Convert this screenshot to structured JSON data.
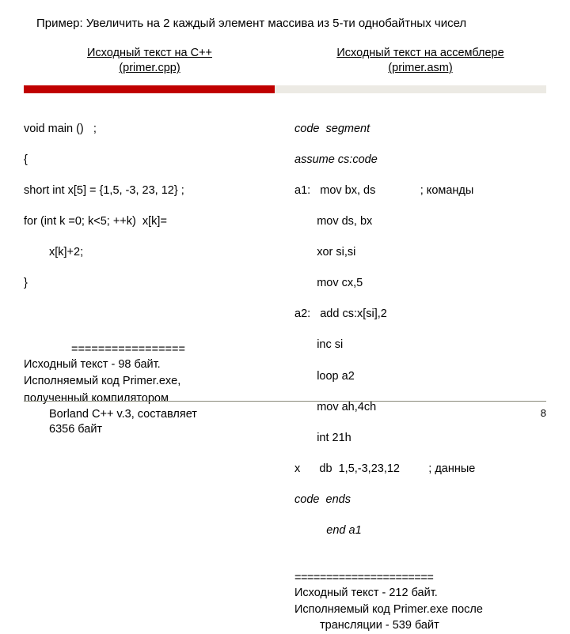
{
  "title": "Пример: Увеличить на 2 каждый элемент массива из 5-ти однобайтных чисел",
  "left": {
    "heading_l1": "Исходный текст  на С++",
    "heading_l2": "(primer.cpp)",
    "code": {
      "l1": "void main ()   ;",
      "l2": "{",
      "l3": "short int x[5] = {1,5, -3, 23, 12} ;",
      "l4a": "for (int k =0; k<5; ++k)  x[k]=",
      "l4b": "x[k]+2;",
      "l5": "}"
    },
    "sep": "=================",
    "note1": "Исходный текст -   98 байт.",
    "note2": "Исполняемый код Primer.exe,",
    "note3a": "полученный  компилятором",
    "note3b": "Borland C++ v.3, составляет",
    "note3c": "6356 байт"
  },
  "right": {
    "heading_l1": "Исходный текст на ассемблере",
    "heading_l2": "(primer.asm)",
    "code": {
      "l1": "code  segment",
      "l2": "assume cs:code",
      "l3": "a1:   mov bx, ds              ; команды",
      "l4": "       mov ds, bx",
      "l5": "       xor si,si",
      "l6": "       mov cx,5",
      "l7": "a2:   add cs:x[si],2",
      "l8": "       inc si",
      "l9": "       loop a2",
      "l10": "       mov ah,4ch",
      "l11": "       int 21h",
      "l12": "x      db  1,5,-3,23,12         ; данные",
      "l13": "code  ends",
      "l14": "          end a1"
    },
    "sep": "======================",
    "note1": "Исходный текст -   212 байт.",
    "note2a": "Исполняемый код  Primer.exe после",
    "note2b": "трансляции   -   539 байт"
  },
  "pagenum": "8"
}
